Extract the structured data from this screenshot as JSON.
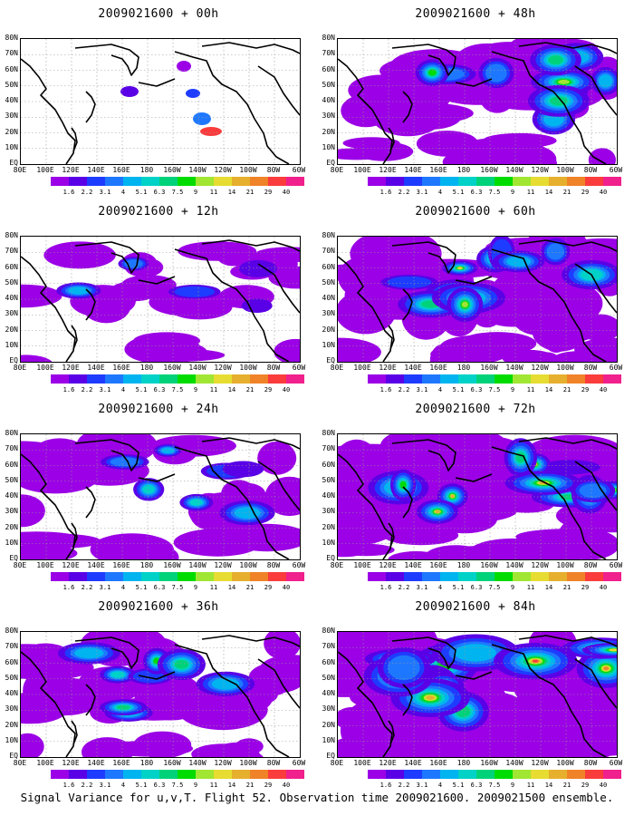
{
  "caption": "Signal Variance for u,v,T. Flight 52. Observation time 2009021600. 2009021500 ensemble.",
  "panels": [
    {
      "title": "2009021600 + 00h",
      "lead": 0
    },
    {
      "title": "2009021600 + 48h",
      "lead": 48
    },
    {
      "title": "2009021600 + 12h",
      "lead": 12
    },
    {
      "title": "2009021600 + 60h",
      "lead": 60
    },
    {
      "title": "2009021600 + 24h",
      "lead": 24
    },
    {
      "title": "2009021600 + 72h",
      "lead": 72
    },
    {
      "title": "2009021600 + 36h",
      "lead": 36
    },
    {
      "title": "2009021600 + 84h",
      "lead": 84
    }
  ],
  "lat_labels": [
    "80N",
    "70N",
    "60N",
    "50N",
    "40N",
    "30N",
    "20N",
    "10N",
    "EQ"
  ],
  "lon_labels": [
    "80E",
    "100E",
    "120E",
    "140E",
    "160E",
    "180",
    "160W",
    "140W",
    "120W",
    "100W",
    "80W",
    "60W"
  ],
  "colorbar": {
    "labels": [
      "1.6",
      "2.2",
      "3.1",
      "4",
      "5.1",
      "6.3",
      "7.5",
      "9",
      "11",
      "14",
      "21",
      "29",
      "40"
    ],
    "colors": [
      "#9b00e6",
      "#5a00e6",
      "#1e3cff",
      "#1e78ff",
      "#00b4f0",
      "#00d2c8",
      "#00d27a",
      "#00dc00",
      "#a0e632",
      "#e6dc32",
      "#e6af2d",
      "#f08228",
      "#fa3c3c",
      "#f0208c"
    ]
  }
}
